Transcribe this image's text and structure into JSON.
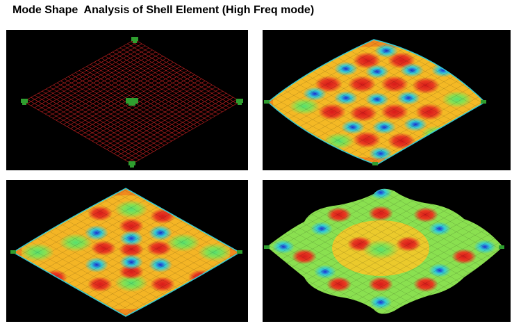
{
  "title": "Mode Shape  Analysis of Shell Element (High Freq mode)",
  "panels": [
    {
      "id": "undeformed-mesh",
      "content": "undeformed-mesh-plot"
    },
    {
      "id": "mode-shape-a",
      "content": "contour-mode-plot"
    },
    {
      "id": "mode-shape-b",
      "content": "contour-mode-plot"
    },
    {
      "id": "mode-shape-c",
      "content": "contour-mode-plot"
    }
  ],
  "colors": {
    "background": "#000000",
    "mesh": "#cc2222",
    "support": "#2f9e2f",
    "contour_high": "#d81a1a",
    "contour_mid": "#f5d020",
    "contour_low": "#1d2fd6",
    "contour_cyan": "#33ccd6"
  }
}
